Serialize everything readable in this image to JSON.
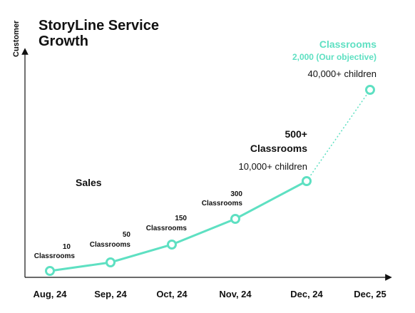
{
  "chart_data": {
    "type": "line",
    "title": "StoryLine Service Growth",
    "title_lines": [
      "StoryLine Service",
      "Growth"
    ],
    "ylabel": "Customer",
    "xlabel": "",
    "categories": [
      "Aug, 24",
      "Sep, 24",
      "Oct, 24",
      "Nov, 24",
      "Dec, 24",
      "Dec, 25"
    ],
    "series": [
      {
        "values": [
          10,
          50,
          150,
          300,
          500,
          2000
        ],
        "projected_from_index": 4,
        "color": "#5ee0c2"
      }
    ],
    "point_labels": [
      [
        "10",
        "Classrooms"
      ],
      [
        "50",
        "Classrooms"
      ],
      [
        "150",
        "Classrooms"
      ],
      [
        "300",
        "Classrooms"
      ]
    ],
    "annotations": {
      "sales": "Sales",
      "dec24": {
        "value": "500+",
        "unit": "Classrooms",
        "children": "10,000+ children"
      },
      "dec25": {
        "unit": "Classrooms",
        "value": "2,000 (Our objective)",
        "children": "40,000+ children"
      }
    },
    "grid": false,
    "legend": "none"
  }
}
